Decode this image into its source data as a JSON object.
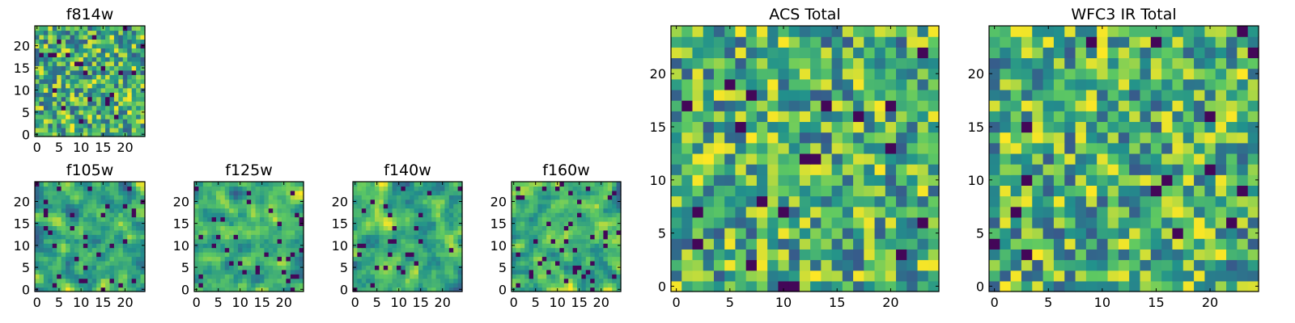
{
  "chart_data": [
    {
      "panel": "f814w",
      "type": "heatmap",
      "title": "f814w",
      "x_ticks": [
        "0",
        "5",
        "10",
        "15",
        "20"
      ],
      "y_ticks": [
        "0",
        "5",
        "10",
        "15",
        "20"
      ],
      "xlim": [
        -0.5,
        24.5
      ],
      "ylim": [
        -0.5,
        24.5
      ],
      "grid_size": 25,
      "noise_seed": 11,
      "smoothing": 0,
      "dark_fraction": 0.03
    },
    {
      "panel": "f105w",
      "type": "heatmap",
      "title": "f105w",
      "x_ticks": [
        "0",
        "5",
        "10",
        "15",
        "20"
      ],
      "y_ticks": [
        "0",
        "5",
        "10",
        "15",
        "20"
      ],
      "xlim": [
        -0.5,
        24.5
      ],
      "ylim": [
        -0.5,
        24.5
      ],
      "grid_size": 25,
      "noise_seed": 23,
      "smoothing": 1,
      "dark_fraction": 0.05
    },
    {
      "panel": "f125w",
      "type": "heatmap",
      "title": "f125w",
      "x_ticks": [
        "0",
        "5",
        "10",
        "15",
        "20"
      ],
      "y_ticks": [
        "0",
        "5",
        "10",
        "15",
        "20"
      ],
      "xlim": [
        -0.5,
        24.5
      ],
      "ylim": [
        -0.5,
        24.5
      ],
      "grid_size": 25,
      "noise_seed": 37,
      "smoothing": 1,
      "dark_fraction": 0.05
    },
    {
      "panel": "f140w",
      "type": "heatmap",
      "title": "f140w",
      "x_ticks": [
        "0",
        "5",
        "10",
        "15",
        "20"
      ],
      "y_ticks": [
        "0",
        "5",
        "10",
        "15",
        "20"
      ],
      "xlim": [
        -0.5,
        24.5
      ],
      "ylim": [
        -0.5,
        24.5
      ],
      "grid_size": 25,
      "noise_seed": 41,
      "smoothing": 1,
      "dark_fraction": 0.06
    },
    {
      "panel": "f160w",
      "type": "heatmap",
      "title": "f160w",
      "x_ticks": [
        "0",
        "5",
        "10",
        "15",
        "20"
      ],
      "y_ticks": [
        "0",
        "5",
        "10",
        "15",
        "20"
      ],
      "xlim": [
        -0.5,
        24.5
      ],
      "ylim": [
        -0.5,
        24.5
      ],
      "grid_size": 25,
      "noise_seed": 53,
      "smoothing": 1,
      "dark_fraction": 0.06
    },
    {
      "panel": "acs_total",
      "type": "heatmap",
      "title": "ACS Total",
      "x_ticks": [
        "0",
        "5",
        "10",
        "15",
        "20"
      ],
      "y_ticks": [
        "0",
        "5",
        "10",
        "15",
        "20"
      ],
      "xlim": [
        -0.5,
        24.5
      ],
      "ylim": [
        -0.5,
        24.5
      ],
      "grid_size": 25,
      "noise_seed": 67,
      "smoothing": 0,
      "dark_fraction": 0.02
    },
    {
      "panel": "wfc3_ir_total",
      "type": "heatmap",
      "title": "WFC3 IR Total",
      "x_ticks": [
        "0",
        "5",
        "10",
        "15",
        "20"
      ],
      "y_ticks": [
        "0",
        "5",
        "10",
        "15",
        "20"
      ],
      "xlim": [
        -0.5,
        24.5
      ],
      "ylim": [
        -0.5,
        24.5
      ],
      "grid_size": 25,
      "noise_seed": 79,
      "smoothing": 0,
      "dark_fraction": 0.02
    }
  ],
  "colormap": {
    "name": "viridis",
    "stops": [
      "#440154",
      "#3b528b",
      "#21918c",
      "#5ec962",
      "#fde725"
    ]
  }
}
